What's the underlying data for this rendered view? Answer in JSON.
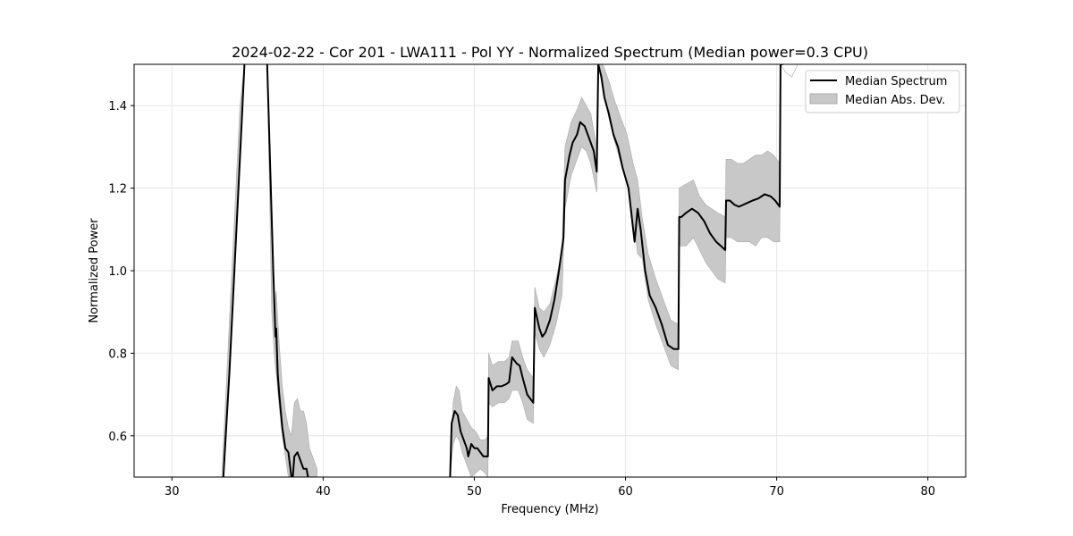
{
  "chart_data": {
    "type": "line",
    "title": "2024-02-22 - Cor 201 - LWA111 - Pol YY - Normalized Spectrum (Median power=0.3 CPU)",
    "xlabel": "Frequency (MHz)",
    "ylabel": "Normalized Power",
    "xlim": [
      27.5,
      82.5
    ],
    "ylim": [
      0.5,
      1.5
    ],
    "xticks": [
      30,
      40,
      50,
      60,
      70,
      80
    ],
    "yticks": [
      0.6,
      0.8,
      1.0,
      1.2,
      1.4
    ],
    "xtick_labels": [
      "30",
      "40",
      "50",
      "60",
      "70",
      "80"
    ],
    "ytick_labels": [
      "0.6",
      "0.8",
      "1.0",
      "1.2",
      "1.4"
    ],
    "grid": true,
    "legend_position": "top-right",
    "series": [
      {
        "name": "Median Spectrum",
        "kind": "line",
        "color": "#000000",
        "segments": [
          {
            "x": [
              33.4,
              33.8,
              34.2,
              34.6,
              34.8
            ],
            "y": [
              0.5,
              0.75,
              1.05,
              1.35,
              1.5
            ]
          },
          {
            "x": [
              36.3,
              36.5,
              36.7,
              36.85,
              36.9,
              37.0,
              37.1,
              37.3,
              37.5,
              37.7,
              37.9,
              38.0,
              38.1,
              38.3,
              38.5,
              38.7,
              38.9,
              39.0
            ],
            "y": [
              1.5,
              1.25,
              1.0,
              0.84,
              0.86,
              0.75,
              0.7,
              0.62,
              0.57,
              0.56,
              0.5,
              0.5,
              0.55,
              0.56,
              0.54,
              0.52,
              0.52,
              0.5
            ]
          },
          {
            "x": [
              48.4,
              48.5,
              48.7,
              48.9,
              49.1,
              49.3,
              49.5,
              49.6,
              49.8,
              50.0,
              50.2,
              50.4,
              50.6,
              50.9,
              50.95,
              51.2,
              51.5,
              51.8,
              52.1,
              52.3,
              52.5,
              52.8,
              53.0,
              53.2,
              53.5,
              53.9,
              54.0,
              54.3,
              54.5,
              54.7,
              55.0,
              55.3,
              55.6,
              55.9,
              56.0,
              56.3,
              56.5,
              56.8,
              57.0,
              57.3,
              57.6,
              57.9,
              58.1,
              58.2,
              58.4,
              58.6,
              58.9,
              59.2,
              59.5,
              59.8,
              60.2,
              60.6,
              60.8,
              61.0,
              61.3,
              61.6,
              62.0,
              62.4,
              62.8,
              63.2,
              63.5,
              63.55,
              63.7,
              64.0,
              64.4,
              64.8,
              65.2,
              65.6,
              66.0,
              66.3,
              66.6,
              66.65,
              66.9,
              67.2,
              67.5,
              67.8,
              68.1,
              68.4,
              68.8,
              69.2,
              69.6,
              69.9,
              70.2,
              70.25,
              70.4
            ],
            "y": [
              0.5,
              0.63,
              0.66,
              0.65,
              0.61,
              0.59,
              0.57,
              0.55,
              0.58,
              0.57,
              0.57,
              0.56,
              0.55,
              0.55,
              0.74,
              0.71,
              0.72,
              0.72,
              0.725,
              0.73,
              0.79,
              0.775,
              0.77,
              0.74,
              0.7,
              0.68,
              0.91,
              0.86,
              0.84,
              0.85,
              0.88,
              0.93,
              1.0,
              1.08,
              1.22,
              1.28,
              1.31,
              1.33,
              1.36,
              1.35,
              1.32,
              1.29,
              1.24,
              1.5,
              1.47,
              1.42,
              1.38,
              1.33,
              1.3,
              1.25,
              1.2,
              1.07,
              1.15,
              1.1,
              1.0,
              0.94,
              0.91,
              0.87,
              0.82,
              0.81,
              0.81,
              1.13,
              1.13,
              1.14,
              1.15,
              1.14,
              1.12,
              1.09,
              1.07,
              1.06,
              1.05,
              1.17,
              1.17,
              1.16,
              1.155,
              1.16,
              1.165,
              1.17,
              1.175,
              1.185,
              1.18,
              1.17,
              1.155,
              1.5,
              1.5
            ]
          }
        ]
      },
      {
        "name": "Median Abs. Dev.",
        "kind": "band",
        "color": "#c8c8c8",
        "segments": [
          {
            "x": [
              33.3,
              33.7,
              34.1,
              34.5,
              34.8
            ],
            "upper": [
              0.5,
              0.8,
              1.1,
              1.4,
              1.5
            ],
            "lower": [
              0.5,
              0.7,
              1.0,
              1.3,
              1.5
            ]
          },
          {
            "x": [
              36.3,
              36.6,
              36.8,
              36.9,
              37.1,
              37.3,
              37.5,
              37.7,
              37.9,
              38.1,
              38.3,
              38.5,
              38.7,
              38.9,
              39.1,
              39.3,
              39.6
            ],
            "upper": [
              1.5,
              1.1,
              0.92,
              0.95,
              0.82,
              0.72,
              0.66,
              0.62,
              0.6,
              0.68,
              0.69,
              0.66,
              0.66,
              0.63,
              0.57,
              0.55,
              0.52
            ],
            "lower": [
              1.5,
              0.9,
              0.78,
              0.75,
              0.67,
              0.6,
              0.55,
              0.5,
              0.5,
              0.5,
              0.5,
              0.5,
              0.5,
              0.5,
              0.5,
              0.5,
              0.5
            ]
          },
          {
            "x": [
              48.4,
              48.6,
              48.8,
              49.0,
              49.2,
              49.5,
              49.8,
              50.1,
              50.4,
              50.7,
              50.9,
              50.95,
              51.2,
              51.6,
              52.0,
              52.3,
              52.5,
              52.9,
              53.2,
              53.5,
              53.9,
              54.0,
              54.3,
              54.6,
              55.0,
              55.4,
              55.8,
              56.0,
              56.4,
              56.8,
              57.1,
              57.4,
              57.7,
              58.1,
              58.2,
              58.5,
              58.9,
              59.3,
              59.7,
              60.1,
              60.5,
              60.8,
              61.1,
              61.5,
              62.0,
              62.5,
              63.0,
              63.5,
              63.55,
              64.0,
              64.5,
              64.9,
              65.3,
              65.7,
              66.1,
              66.6,
              66.65,
              67.0,
              67.4,
              67.8,
              68.2,
              68.6,
              69.0,
              69.4,
              69.8,
              70.2,
              70.25,
              70.6,
              71.0,
              71.4
            ],
            "upper": [
              0.5,
              0.68,
              0.72,
              0.71,
              0.66,
              0.64,
              0.62,
              0.61,
              0.59,
              0.59,
              0.6,
              0.8,
              0.77,
              0.78,
              0.78,
              0.79,
              0.83,
              0.83,
              0.79,
              0.76,
              0.74,
              0.96,
              0.91,
              0.9,
              0.92,
              0.98,
              1.05,
              1.3,
              1.36,
              1.39,
              1.42,
              1.4,
              1.38,
              1.3,
              1.5,
              1.5,
              1.46,
              1.41,
              1.37,
              1.33,
              1.26,
              1.22,
              1.13,
              1.04,
              0.98,
              0.93,
              0.88,
              0.87,
              1.2,
              1.21,
              1.22,
              1.18,
              1.16,
              1.15,
              1.14,
              1.13,
              1.27,
              1.27,
              1.26,
              1.26,
              1.27,
              1.28,
              1.28,
              1.29,
              1.28,
              1.26,
              1.5,
              1.48,
              1.47,
              1.5
            ],
            "lower": [
              0.5,
              0.58,
              0.6,
              0.59,
              0.56,
              0.53,
              0.5,
              0.51,
              0.52,
              0.51,
              0.5,
              0.68,
              0.67,
              0.68,
              0.68,
              0.69,
              0.71,
              0.71,
              0.68,
              0.64,
              0.63,
              0.85,
              0.81,
              0.79,
              0.82,
              0.87,
              0.94,
              1.15,
              1.23,
              1.27,
              1.3,
              1.29,
              1.26,
              1.19,
              1.5,
              1.44,
              1.37,
              1.31,
              1.26,
              1.21,
              1.13,
              1.04,
              1.03,
              0.93,
              0.87,
              0.82,
              0.77,
              0.76,
              1.06,
              1.06,
              1.08,
              1.05,
              1.02,
              1.0,
              0.98,
              0.97,
              1.08,
              1.08,
              1.07,
              1.07,
              1.07,
              1.06,
              1.08,
              1.08,
              1.07,
              1.07,
              1.5,
              1.48,
              1.47,
              1.5
            ]
          }
        ]
      }
    ]
  }
}
